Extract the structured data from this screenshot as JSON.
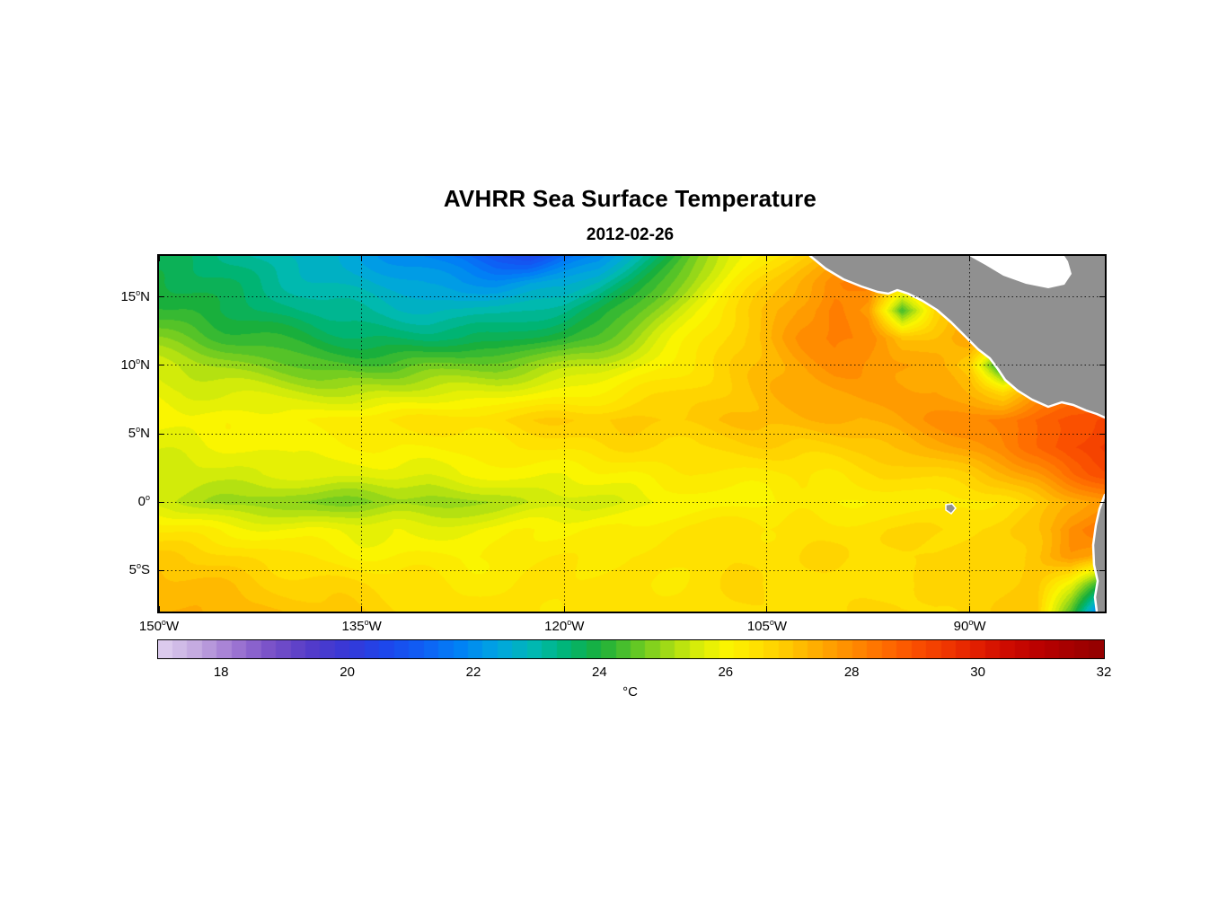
{
  "title": "AVHRR Sea Surface Temperature",
  "subtitle": "2012-02-26",
  "colorbar": {
    "label": "°C",
    "min": 17,
    "max": 32,
    "segments": 64,
    "ticks": [
      18,
      20,
      22,
      24,
      26,
      28,
      30,
      32
    ]
  },
  "axes": {
    "lon_min": -150,
    "lon_max": -80,
    "lat_min": -8,
    "lat_max": 18,
    "x_ticks": [
      {
        "lon": -150,
        "deg": "150",
        "hem": "W"
      },
      {
        "lon": -135,
        "deg": "135",
        "hem": "W"
      },
      {
        "lon": -120,
        "deg": "120",
        "hem": "W"
      },
      {
        "lon": -105,
        "deg": "105",
        "hem": "W"
      },
      {
        "lon": -90,
        "deg": "90",
        "hem": "W"
      }
    ],
    "y_ticks": [
      {
        "lat": 15,
        "deg": "15",
        "hem": "N"
      },
      {
        "lat": 10,
        "deg": "10",
        "hem": "N"
      },
      {
        "lat": 5,
        "deg": "5",
        "hem": "N"
      },
      {
        "lat": 0,
        "deg": "0",
        "hem": ""
      },
      {
        "lat": -5,
        "deg": "5",
        "hem": "S"
      }
    ]
  },
  "map": {
    "land_color": "#909090",
    "coast_color": "#FFFFFF",
    "nodata_color": "#FFFFFF",
    "land_polygons": [
      {
        "name": "central-america-land",
        "points": [
          [
            725,
            0
          ],
          [
            742,
            14
          ],
          [
            762,
            26
          ],
          [
            782,
            34
          ],
          [
            800,
            40
          ],
          [
            812,
            42
          ],
          [
            822,
            38
          ],
          [
            834,
            42
          ],
          [
            850,
            50
          ],
          [
            866,
            60
          ],
          [
            882,
            74
          ],
          [
            898,
            90
          ],
          [
            912,
            104
          ],
          [
            925,
            114
          ],
          [
            934,
            126
          ],
          [
            942,
            138
          ],
          [
            956,
            150
          ],
          [
            972,
            160
          ],
          [
            990,
            168
          ],
          [
            1005,
            163
          ],
          [
            1018,
            166
          ],
          [
            1032,
            172
          ],
          [
            1044,
            176
          ],
          [
            1053,
            180
          ],
          [
            1053,
            0
          ]
        ]
      },
      {
        "name": "south-america-land",
        "points": [
          [
            1053,
            266
          ],
          [
            1047,
            282
          ],
          [
            1043,
            300
          ],
          [
            1040,
            322
          ],
          [
            1041,
            344
          ],
          [
            1045,
            362
          ],
          [
            1042,
            380
          ],
          [
            1044,
            396
          ],
          [
            1053,
            396
          ]
        ]
      }
    ],
    "nodata_polygons": [
      {
        "name": "caribbean-nodata",
        "points": [
          [
            902,
            0
          ],
          [
            920,
            10
          ],
          [
            940,
            22
          ],
          [
            965,
            31
          ],
          [
            990,
            36
          ],
          [
            1008,
            32
          ],
          [
            1016,
            20
          ],
          [
            1012,
            6
          ],
          [
            1008,
            0
          ]
        ]
      }
    ],
    "coastlines": [
      {
        "name": "central-america-coastline",
        "points": [
          [
            725,
            0
          ],
          [
            742,
            14
          ],
          [
            762,
            26
          ],
          [
            782,
            34
          ],
          [
            800,
            40
          ],
          [
            812,
            42
          ],
          [
            822,
            38
          ],
          [
            834,
            42
          ],
          [
            850,
            50
          ],
          [
            866,
            60
          ],
          [
            882,
            74
          ],
          [
            898,
            90
          ],
          [
            912,
            104
          ],
          [
            925,
            114
          ],
          [
            934,
            126
          ],
          [
            942,
            138
          ],
          [
            956,
            150
          ],
          [
            972,
            160
          ],
          [
            990,
            168
          ],
          [
            1005,
            163
          ],
          [
            1018,
            166
          ],
          [
            1032,
            172
          ],
          [
            1044,
            176
          ],
          [
            1053,
            180
          ]
        ]
      },
      {
        "name": "south-america-coastline",
        "points": [
          [
            1053,
            266
          ],
          [
            1047,
            282
          ],
          [
            1043,
            300
          ],
          [
            1040,
            322
          ],
          [
            1041,
            344
          ],
          [
            1045,
            362
          ],
          [
            1042,
            380
          ],
          [
            1044,
            396
          ]
        ]
      }
    ],
    "islands": [
      {
        "name": "galapagos-island",
        "points": [
          [
            876,
            277
          ],
          [
            883,
            276
          ],
          [
            887,
            281
          ],
          [
            882,
            287
          ],
          [
            876,
            283
          ]
        ]
      }
    ]
  },
  "chart_data": {
    "type": "heatmap",
    "title": "AVHRR Sea Surface Temperature",
    "subtitle": "2012-02-26",
    "units": "°C",
    "value_range": [
      17,
      32
    ],
    "lon_range": [
      -150,
      -80
    ],
    "lat_range": [
      -8,
      18
    ],
    "lons": [
      -150,
      -147.5,
      -145,
      -142.5,
      -140,
      -137.5,
      -135,
      -132.5,
      -130,
      -127.5,
      -125,
      -122.5,
      -120,
      -117.5,
      -115,
      -112.5,
      -110,
      -107.5,
      -105,
      -102.5,
      -100,
      -97.5,
      -95,
      -92.5,
      -90,
      -87.5,
      -85,
      -82.5,
      -80
    ],
    "lats": [
      18,
      16,
      14,
      12,
      10,
      8,
      6,
      4,
      2,
      0,
      -2,
      -4,
      -6,
      -8
    ],
    "sst": [
      [
        23.6,
        23.4,
        23.2,
        23.0,
        22.8,
        22.6,
        22.4,
        22.2,
        21.9,
        21.6,
        21.0,
        20.7,
        21.4,
        21.8,
        22.8,
        23.8,
        24.8,
        25.6,
        26.2,
        26.8,
        27.2,
        27.5,
        27.8,
        27.9,
        28.0,
        28.0,
        28.0,
        28.0,
        28.0
      ],
      [
        23.9,
        23.7,
        23.5,
        23.3,
        23.1,
        22.9,
        22.7,
        22.5,
        22.3,
        22.2,
        22.2,
        22.4,
        22.5,
        22.9,
        23.6,
        24.5,
        25.4,
        26.1,
        26.7,
        27.4,
        28.0,
        28.4,
        27.0,
        27.3,
        27.8,
        28.0,
        28.0,
        28.0,
        28.0
      ],
      [
        24.3,
        24.1,
        23.8,
        23.6,
        23.4,
        23.2,
        23.1,
        23.0,
        22.9,
        22.9,
        23.0,
        23.2,
        23.4,
        23.8,
        24.4,
        25.1,
        25.9,
        26.6,
        27.2,
        27.8,
        28.3,
        27.6,
        24.3,
        26.8,
        27.7,
        27.9,
        28.0,
        28.0,
        28.0
      ],
      [
        24.9,
        24.7,
        24.4,
        24.2,
        24.0,
        23.8,
        23.7,
        23.6,
        23.5,
        23.5,
        23.6,
        23.9,
        24.1,
        24.5,
        25.1,
        25.7,
        26.3,
        26.9,
        27.4,
        27.9,
        28.2,
        28.0,
        27.0,
        27.2,
        27.7,
        27.6,
        27.8,
        28.0,
        28.0
      ],
      [
        25.5,
        25.3,
        25.1,
        24.9,
        24.7,
        24.5,
        24.4,
        24.4,
        24.5,
        24.6,
        24.7,
        24.9,
        25.1,
        25.4,
        25.8,
        26.2,
        26.6,
        27.0,
        27.3,
        27.6,
        27.9,
        27.9,
        27.7,
        27.4,
        26.6,
        23.5,
        27.0,
        27.6,
        28.0
      ],
      [
        25.9,
        25.8,
        25.7,
        25.6,
        25.5,
        25.4,
        25.3,
        25.3,
        25.4,
        25.5,
        25.6,
        25.8,
        26.0,
        26.2,
        26.4,
        26.6,
        26.9,
        27.1,
        27.3,
        27.5,
        27.6,
        27.7,
        27.7,
        27.6,
        27.2,
        26.6,
        27.6,
        28.1,
        28.3
      ],
      [
        26.0,
        26.0,
        26.1,
        26.1,
        26.2,
        26.2,
        26.3,
        26.3,
        26.4,
        26.5,
        26.6,
        26.7,
        26.8,
        26.9,
        27.0,
        27.0,
        27.1,
        27.2,
        27.2,
        27.3,
        27.4,
        27.5,
        27.6,
        27.8,
        28.0,
        28.3,
        28.6,
        29.0,
        29.2
      ],
      [
        25.8,
        25.8,
        25.9,
        25.9,
        26.0,
        26.0,
        26.0,
        26.1,
        26.1,
        26.2,
        26.3,
        26.4,
        26.5,
        26.5,
        26.6,
        26.6,
        26.7,
        26.7,
        26.8,
        26.8,
        26.9,
        27.0,
        27.2,
        27.4,
        27.7,
        28.0,
        28.5,
        29.2,
        29.5
      ],
      [
        25.5,
        25.5,
        25.6,
        25.6,
        25.6,
        25.7,
        25.7,
        25.8,
        25.8,
        25.9,
        25.9,
        26.0,
        26.0,
        26.1,
        26.1,
        26.2,
        26.2,
        26.3,
        26.3,
        26.4,
        26.4,
        26.5,
        26.6,
        26.8,
        27.0,
        27.3,
        27.8,
        28.5,
        29.0
      ],
      [
        25.3,
        25.2,
        25.0,
        24.9,
        24.8,
        24.8,
        24.9,
        25.0,
        25.0,
        25.1,
        25.2,
        25.4,
        25.5,
        25.6,
        25.7,
        25.8,
        25.9,
        26.0,
        26.0,
        26.1,
        26.1,
        26.2,
        26.2,
        26.3,
        26.4,
        26.6,
        26.9,
        27.3,
        27.8
      ],
      [
        26.2,
        26.1,
        26.0,
        25.9,
        25.8,
        25.8,
        25.8,
        25.9,
        25.9,
        26.0,
        26.0,
        26.1,
        26.1,
        26.2,
        26.2,
        26.3,
        26.3,
        26.4,
        26.4,
        26.5,
        26.5,
        26.6,
        26.6,
        26.7,
        26.8,
        26.9,
        27.2,
        28.0,
        28.3
      ],
      [
        26.8,
        26.7,
        26.6,
        26.5,
        26.4,
        26.3,
        26.2,
        26.2,
        26.2,
        26.2,
        26.3,
        26.3,
        26.3,
        26.3,
        26.4,
        26.4,
        26.4,
        26.5,
        26.5,
        26.5,
        26.6,
        26.6,
        26.7,
        26.7,
        26.8,
        26.9,
        27.2,
        27.8,
        27.4
      ],
      [
        27.2,
        27.1,
        27.0,
        26.9,
        26.8,
        26.7,
        26.6,
        26.5,
        26.5,
        26.4,
        26.4,
        26.4,
        26.4,
        26.4,
        26.4,
        26.4,
        26.5,
        26.5,
        26.5,
        26.5,
        26.5,
        26.6,
        26.6,
        26.6,
        26.7,
        26.8,
        27.0,
        26.0,
        23.8
      ],
      [
        27.5,
        27.4,
        27.3,
        27.2,
        27.0,
        26.9,
        26.8,
        26.7,
        26.6,
        26.5,
        26.5,
        26.5,
        26.5,
        26.5,
        26.5,
        26.5,
        26.5,
        26.6,
        26.6,
        26.6,
        26.6,
        26.6,
        26.6,
        26.7,
        26.7,
        26.8,
        26.9,
        24.5,
        21.0
      ]
    ],
    "colormap_stops": [
      [
        17.0,
        225,
        210,
        240
      ],
      [
        17.6,
        196,
        170,
        225
      ],
      [
        18.2,
        160,
        120,
        210
      ],
      [
        18.8,
        120,
        80,
        200
      ],
      [
        19.4,
        85,
        60,
        200
      ],
      [
        20.0,
        55,
        55,
        215
      ],
      [
        20.6,
        30,
        70,
        235
      ],
      [
        21.2,
        15,
        95,
        245
      ],
      [
        21.8,
        0,
        130,
        245
      ],
      [
        22.4,
        0,
        165,
        225
      ],
      [
        23.0,
        0,
        185,
        175
      ],
      [
        23.5,
        0,
        180,
        115
      ],
      [
        24.0,
        25,
        175,
        60
      ],
      [
        24.5,
        85,
        195,
        40
      ],
      [
        25.0,
        150,
        215,
        25
      ],
      [
        25.5,
        210,
        235,
        10
      ],
      [
        26.0,
        250,
        245,
        0
      ],
      [
        26.5,
        255,
        225,
        0
      ],
      [
        27.0,
        255,
        200,
        0
      ],
      [
        27.5,
        255,
        170,
        0
      ],
      [
        28.0,
        255,
        140,
        0
      ],
      [
        28.5,
        255,
        110,
        0
      ],
      [
        29.0,
        250,
        80,
        0
      ],
      [
        29.5,
        240,
        55,
        0
      ],
      [
        30.0,
        225,
        30,
        0
      ],
      [
        30.5,
        205,
        10,
        0
      ],
      [
        31.0,
        185,
        0,
        0
      ],
      [
        31.5,
        165,
        0,
        0
      ],
      [
        32.0,
        145,
        0,
        0
      ]
    ]
  }
}
